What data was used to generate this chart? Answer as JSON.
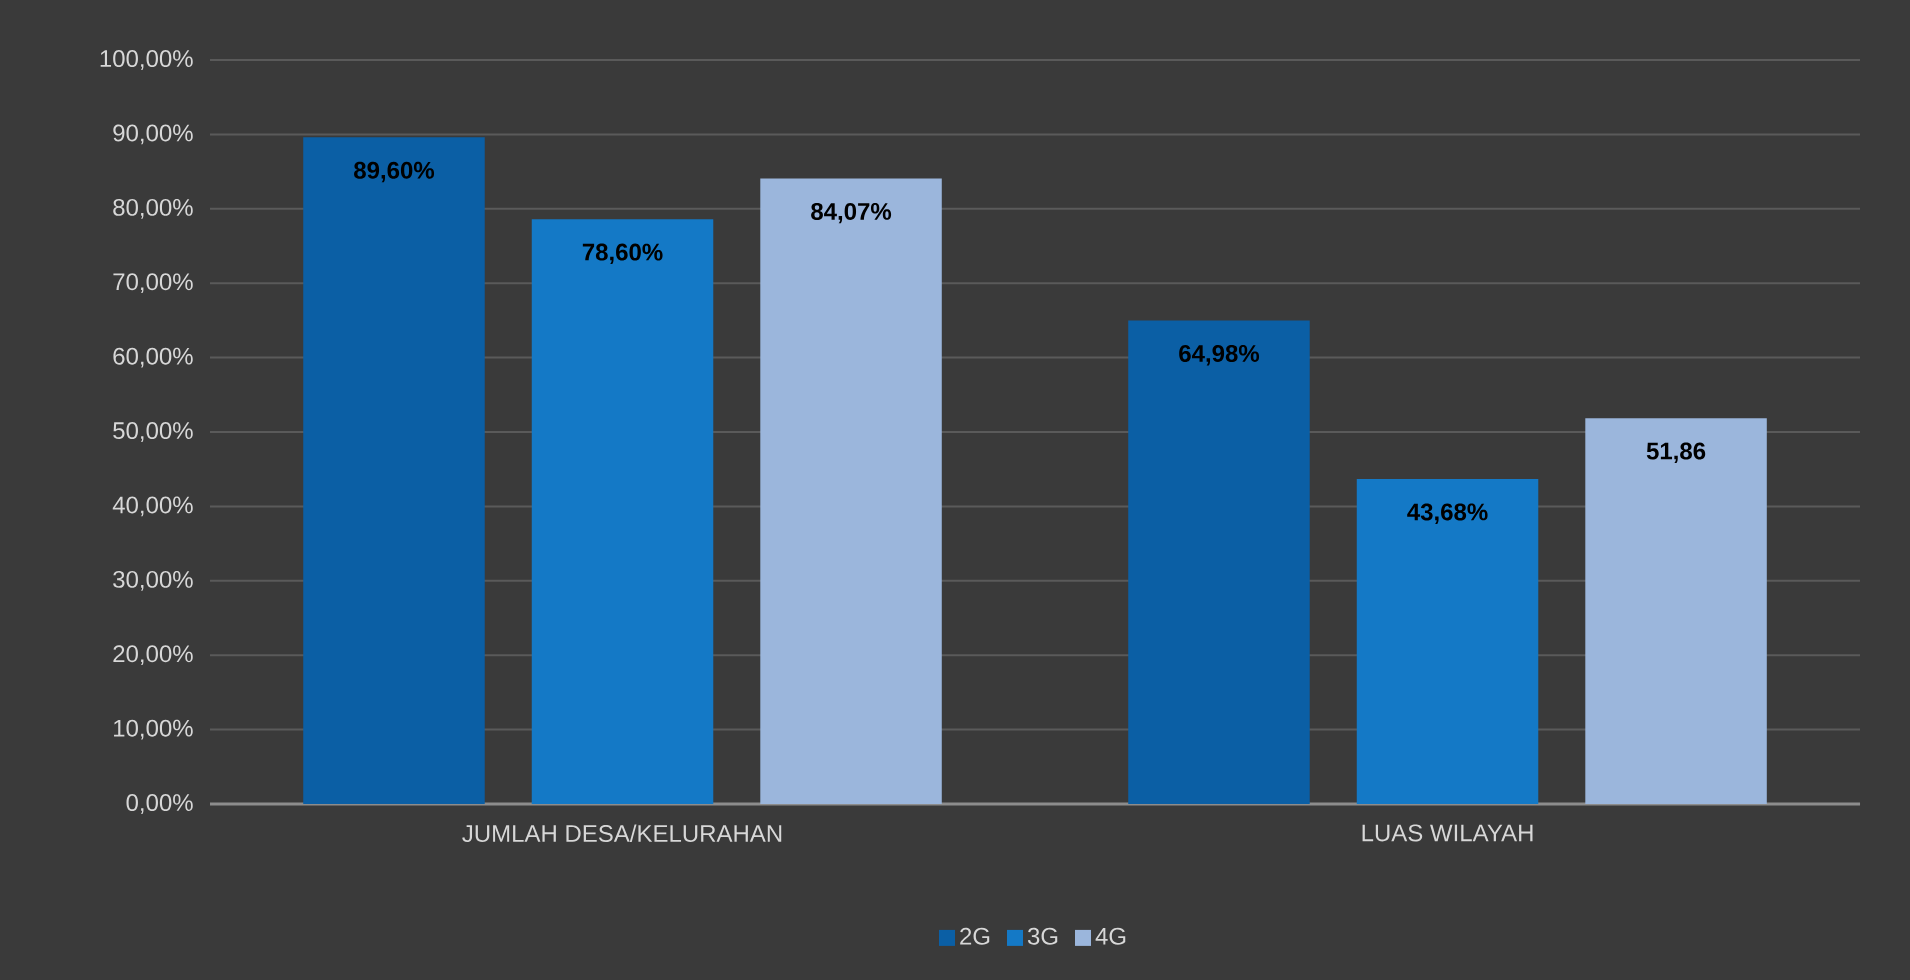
{
  "chart_data": {
    "type": "bar",
    "categories": [
      "JUMLAH DESA/KELURAHAN",
      "LUAS WILAYAH"
    ],
    "series": [
      {
        "name": "2G",
        "color": "#0b5fa5",
        "values": [
          89.6,
          64.98
        ],
        "value_labels": [
          "89,60%",
          "64,98%"
        ]
      },
      {
        "name": "3G",
        "color": "#1479c6",
        "values": [
          78.6,
          43.68
        ],
        "value_labels": [
          "78,60%",
          "43,68%"
        ]
      },
      {
        "name": "4G",
        "color": "#9bb6dc",
        "values": [
          84.07,
          51.86
        ],
        "value_labels": [
          "84,07%",
          "51,86"
        ]
      }
    ],
    "ylim": [
      0,
      100
    ],
    "yticks": [
      {
        "value": 0,
        "label": "0,00%"
      },
      {
        "value": 10,
        "label": "10,00%"
      },
      {
        "value": 20,
        "label": "20,00%"
      },
      {
        "value": 30,
        "label": "30,00%"
      },
      {
        "value": 40,
        "label": "40,00%"
      },
      {
        "value": 50,
        "label": "50,00%"
      },
      {
        "value": 60,
        "label": "60,00%"
      },
      {
        "value": 70,
        "label": "70,00%"
      },
      {
        "value": 80,
        "label": "80,00%"
      },
      {
        "value": 90,
        "label": "90,00%"
      },
      {
        "value": 100,
        "label": "100,00%"
      }
    ],
    "grid": true,
    "legend": "bottom"
  }
}
